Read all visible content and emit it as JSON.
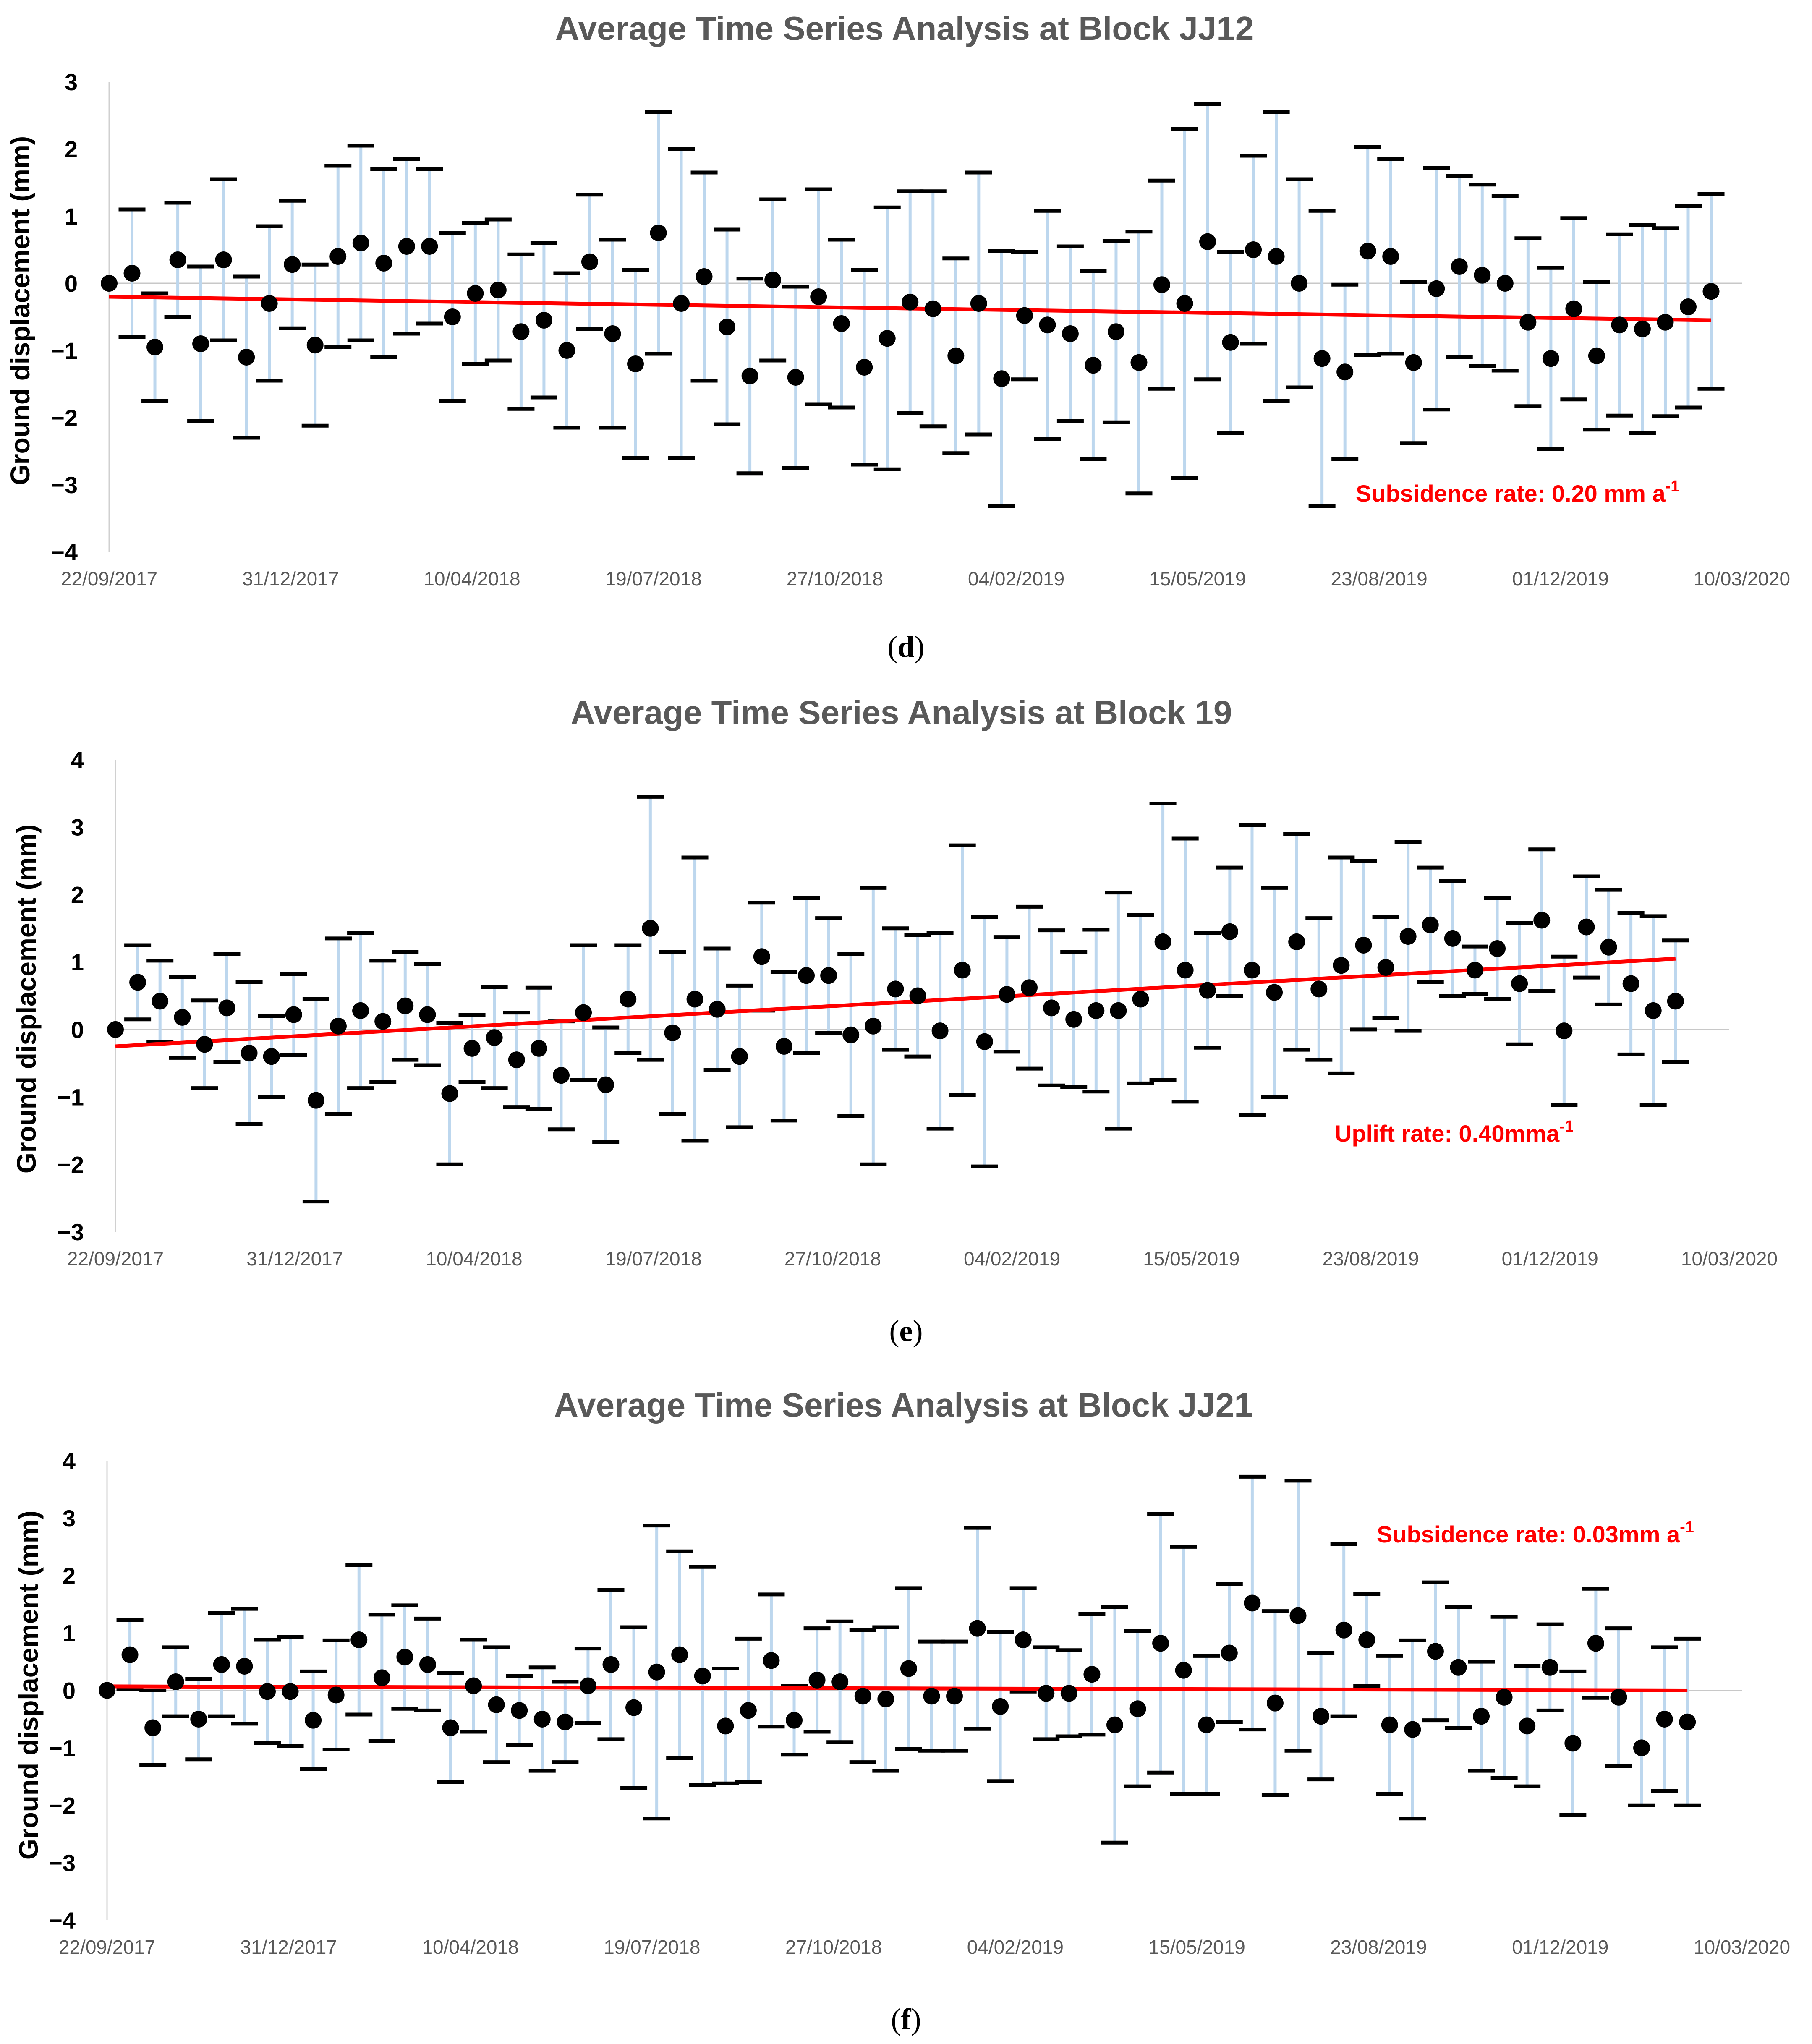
{
  "chart_data": [
    {
      "panel": "d",
      "type": "scatter",
      "title": "Average Time Series Analysis at Block JJ12",
      "ylabel": "Ground displacement (mm)",
      "ylim": [
        -4,
        3
      ],
      "yticks": [
        "3",
        "2",
        "1",
        "0",
        "−1",
        "−2",
        "−3",
        "−4"
      ],
      "xticks": [
        "22/09/2017",
        "31/12/2017",
        "10/04/2018",
        "19/07/2018",
        "27/10/2018",
        "04/02/2019",
        "15/05/2019",
        "23/08/2019",
        "01/12/2019",
        "10/03/2020"
      ],
      "annotation": "Subsidence rate: 0.20 mm a",
      "annotation_sup": "-1",
      "trend": [
        -0.2,
        -0.55
      ],
      "series": [
        {
          "values": [
            0.0,
            0.15,
            -0.95,
            0.35,
            -0.9,
            0.35,
            -1.1,
            -0.3,
            0.28,
            -0.92,
            0.4,
            0.6,
            0.3,
            0.55,
            0.55,
            -0.5,
            -0.15,
            -0.1,
            -0.72,
            -0.55,
            -1.0,
            0.32,
            -0.75,
            -1.2,
            0.75,
            -0.3,
            0.1,
            -0.65,
            -1.38,
            0.05,
            -1.4,
            -0.2,
            -0.6,
            -1.25,
            -0.82,
            -0.28,
            -0.38,
            -1.08,
            -0.3,
            -1.42,
            -0.48,
            -0.62,
            -0.75,
            -1.22,
            -0.72,
            -1.18,
            -0.02,
            -0.3,
            0.62,
            -0.88,
            0.5,
            0.4,
            0.0,
            -1.12,
            -1.32,
            0.48,
            0.4,
            -1.18,
            -0.08,
            0.25,
            0.12,
            0.0,
            -0.58,
            -1.12,
            -0.38,
            -1.08,
            -0.62,
            -0.68,
            -0.58,
            -0.35,
            -0.12
          ],
          "errors": [
            0.0,
            0.95,
            0.8,
            0.85,
            1.15,
            1.2,
            1.2,
            1.15,
            0.95,
            1.2,
            1.35,
            1.45,
            1.4,
            1.3,
            1.15,
            1.25,
            1.05,
            1.05,
            1.15,
            1.15,
            1.15,
            1.0,
            1.4,
            1.4,
            1.8,
            2.3,
            1.55,
            1.45,
            1.45,
            1.2,
            1.35,
            1.6,
            1.25,
            1.45,
            1.95,
            1.65,
            1.75,
            1.45,
            1.95,
            1.9,
            0.95,
            1.7,
            1.3,
            1.4,
            1.35,
            1.95,
            1.55,
            2.6,
            2.05,
            1.35,
            1.4,
            2.15,
            1.55,
            2.2,
            1.3,
            1.55,
            1.45,
            1.2,
            1.8,
            1.35,
            1.35,
            1.3,
            1.25,
            1.35,
            1.35,
            1.1,
            1.35,
            1.55,
            1.4,
            1.5,
            1.45
          ],
          "x_start": 0,
          "x_end": 883
        }
      ]
    },
    {
      "panel": "e",
      "type": "scatter",
      "title": "Average Time Series Analysis at Block 19",
      "ylabel": "Ground displacement (mm)",
      "ylim": [
        -3,
        4
      ],
      "yticks": [
        "4",
        "3",
        "2",
        "1",
        "0",
        "−1",
        "−2",
        "−3"
      ],
      "xticks": [
        "22/09/2017",
        "31/12/2017",
        "10/04/2018",
        "19/07/2018",
        "27/10/2018",
        "04/02/2019",
        "15/05/2019",
        "23/08/2019",
        "01/12/2019",
        "10/03/2020"
      ],
      "annotation": "Uplift rate: 0.40mma",
      "annotation_sup": "-1",
      "trend": [
        -0.25,
        1.05
      ],
      "series": [
        {
          "values": [
            0.0,
            0.7,
            0.42,
            0.18,
            -0.22,
            0.32,
            -0.35,
            -0.4,
            0.22,
            -1.05,
            0.05,
            0.28,
            0.12,
            0.35,
            0.22,
            -0.95,
            -0.28,
            -0.12,
            -0.45,
            -0.28,
            -0.68,
            0.25,
            -0.82,
            0.45,
            1.5,
            -0.05,
            0.45,
            0.3,
            -0.4,
            1.08,
            -0.25,
            0.8,
            0.8,
            -0.08,
            0.05,
            0.6,
            0.5,
            -0.02,
            0.88,
            -0.18,
            0.52,
            0.62,
            0.32,
            0.15,
            0.28,
            0.28,
            0.45,
            1.3,
            0.88,
            0.58,
            1.45,
            0.88,
            0.55,
            1.3,
            0.6,
            0.95,
            1.25,
            0.92,
            1.38,
            1.55,
            1.35,
            0.88,
            1.2,
            0.68,
            1.62,
            -0.02,
            1.52,
            1.22,
            0.68,
            0.28,
            0.42
          ],
          "errors": [
            0.0,
            0.55,
            0.6,
            0.6,
            0.65,
            0.8,
            1.05,
            0.6,
            0.6,
            1.5,
            1.3,
            1.15,
            0.9,
            0.8,
            0.75,
            1.05,
            0.5,
            0.75,
            0.7,
            0.9,
            0.8,
            1.0,
            0.85,
            0.8,
            1.95,
            1.2,
            2.1,
            0.9,
            1.05,
            0.8,
            1.1,
            1.15,
            0.85,
            1.2,
            2.05,
            0.9,
            0.9,
            1.45,
            1.85,
            1.85,
            0.85,
            1.2,
            1.15,
            1.0,
            1.2,
            1.75,
            1.25,
            2.05,
            1.95,
            0.85,
            0.95,
            2.15,
            1.55,
            1.6,
            1.05,
            1.6,
            1.25,
            0.75,
            1.4,
            0.85,
            0.85,
            0.35,
            0.75,
            0.9,
            1.05,
            1.1,
            0.75,
            0.85,
            1.05,
            1.4,
            0.9
          ],
          "x_start": 0,
          "x_end": 870
        }
      ]
    },
    {
      "panel": "f",
      "type": "scatter",
      "title": "Average Time Series Analysis at Block JJ21",
      "ylabel": "Ground displacement (mm)",
      "ylim": [
        -4,
        4
      ],
      "yticks": [
        "4",
        "3",
        "2",
        "1",
        "0",
        "−1",
        "−2",
        "−3",
        "−4"
      ],
      "xticks": [
        "22/09/2017",
        "31/12/2017",
        "10/04/2018",
        "19/07/2018",
        "27/10/2018",
        "04/02/2019",
        "15/05/2019",
        "23/08/2019",
        "01/12/2019",
        "10/03/2020"
      ],
      "annotation": "Subsidence rate: 0.03mm a",
      "annotation_sup": "-1",
      "trend": [
        0.07,
        0.0
      ],
      "series": [
        {
          "values": [
            0.0,
            0.62,
            -0.65,
            0.15,
            -0.5,
            0.45,
            0.42,
            -0.02,
            -0.02,
            -0.52,
            -0.08,
            0.88,
            0.22,
            0.58,
            0.45,
            -0.65,
            0.08,
            -0.25,
            -0.35,
            -0.5,
            -0.55,
            0.08,
            0.45,
            -0.3,
            0.32,
            0.62,
            0.25,
            -0.62,
            -0.35,
            0.52,
            -0.52,
            0.18,
            0.15,
            -0.1,
            -0.15,
            0.38,
            -0.1,
            -0.1,
            1.08,
            -0.28,
            0.88,
            -0.05,
            -0.05,
            0.28,
            -0.6,
            -0.32,
            0.82,
            0.35,
            -0.6,
            0.65,
            1.52,
            -0.22,
            1.3,
            -0.45,
            1.05,
            0.88,
            -0.6,
            -0.68,
            0.68,
            0.4,
            -0.45,
            -0.12,
            -0.62,
            0.4,
            -0.92,
            0.82,
            -0.12,
            -1.0,
            -0.5,
            -0.55
          ],
          "errors": [
            0.0,
            0.6,
            0.65,
            0.6,
            0.7,
            0.9,
            1.0,
            0.9,
            0.95,
            0.85,
            0.95,
            1.3,
            1.1,
            0.9,
            0.8,
            0.95,
            0.8,
            1.0,
            0.6,
            0.9,
            0.7,
            0.65,
            1.3,
            1.4,
            2.55,
            1.8,
            1.9,
            1.0,
            1.25,
            1.15,
            0.6,
            0.9,
            1.05,
            1.15,
            1.25,
            1.4,
            0.95,
            0.95,
            1.75,
            1.3,
            0.9,
            0.8,
            0.75,
            1.05,
            2.05,
            1.35,
            2.25,
            2.15,
            1.2,
            1.2,
            2.2,
            1.6,
            2.35,
            1.1,
            1.5,
            0.8,
            1.2,
            1.55,
            1.2,
            1.05,
            0.95,
            1.4,
            1.05,
            0.75,
            1.25,
            0.95,
            1.2,
            1.0,
            1.25,
            1.45
          ],
          "x_start": 0,
          "x_end": 870
        }
      ]
    }
  ],
  "captions": [
    "(d)",
    "(e)",
    "(f)"
  ]
}
